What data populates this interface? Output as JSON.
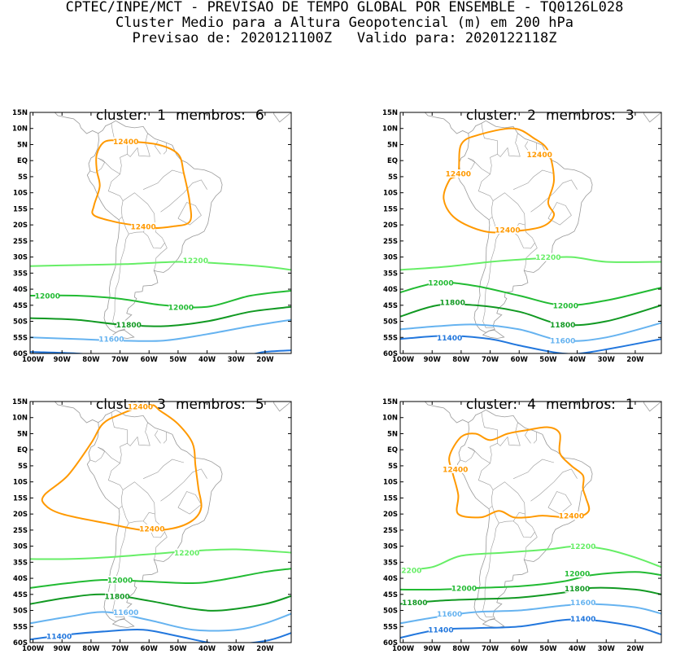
{
  "header": {
    "line1": "CPTEC/INPE/MCT - PREVISAO DE TEMPO GLOBAL POR ENSEMBLE - TQ0126L028",
    "line2": "Cluster Medio para a Altura Geopotencial (m) em 200 hPa",
    "line3": "Previsao de: 2020121100Z   Valido para: 2020122118Z"
  },
  "axes": {
    "lat_labels": [
      "15N",
      "10N",
      "5N",
      "EQ",
      "5S",
      "10S",
      "15S",
      "20S",
      "25S",
      "30S",
      "35S",
      "40S",
      "45S",
      "50S",
      "55S",
      "60S"
    ],
    "lon_labels": [
      "100W",
      "90W",
      "80W",
      "70W",
      "60W",
      "50W",
      "40W",
      "30W",
      "20W"
    ]
  },
  "colors": {
    "c12400": "#ff9900",
    "c12200": "#66ee66",
    "c12000": "#22bb33",
    "c11800": "#119922",
    "c11600": "#66b3f0",
    "c11400": "#2277dd",
    "coast": "#999999"
  },
  "panels": [
    {
      "cluster_label": "cluster:",
      "cluster_num": "1",
      "members_label": "membros:",
      "members_num": "6",
      "contour_labels": {
        "l12400a": "12400",
        "l12400b": "12400",
        "l12200": "12200",
        "l12000a": "12000",
        "l12000b": "12000",
        "l11800": "11800",
        "l11600": "11600"
      }
    },
    {
      "cluster_label": "cluster:",
      "cluster_num": "2",
      "members_label": "membros:",
      "members_num": "3",
      "contour_labels": {
        "l12400a": "12400",
        "l12400b": "12400",
        "l12400c": "12400",
        "l12200": "12200",
        "l12000a": "12000",
        "l12000b": "12000",
        "l11800a": "11800",
        "l11800b": "11800",
        "l11600": "11600",
        "l11400": "11400"
      }
    },
    {
      "cluster_label": "cluster:",
      "cluster_num": "3",
      "members_label": "membros:",
      "members_num": "5",
      "contour_labels": {
        "l12400a": "12400",
        "l12400b": "12400",
        "l12200": "12200",
        "l12000": "12000",
        "l11800": "11800",
        "l11600": "11600",
        "l11400": "11400"
      }
    },
    {
      "cluster_label": "cluster:",
      "cluster_num": "4",
      "members_label": "membros:",
      "members_num": "1",
      "contour_labels": {
        "l12400a": "12400",
        "l12400b": "12400",
        "l12200a": "12200",
        "l12200b": "12200",
        "l12000a": "12000",
        "l12000b": "12000",
        "l11800a": "11800",
        "l11800b": "11800",
        "l11600a": "11600",
        "l11600b": "11600",
        "l11400a": "11400",
        "l11400b": "11400"
      }
    }
  ]
}
